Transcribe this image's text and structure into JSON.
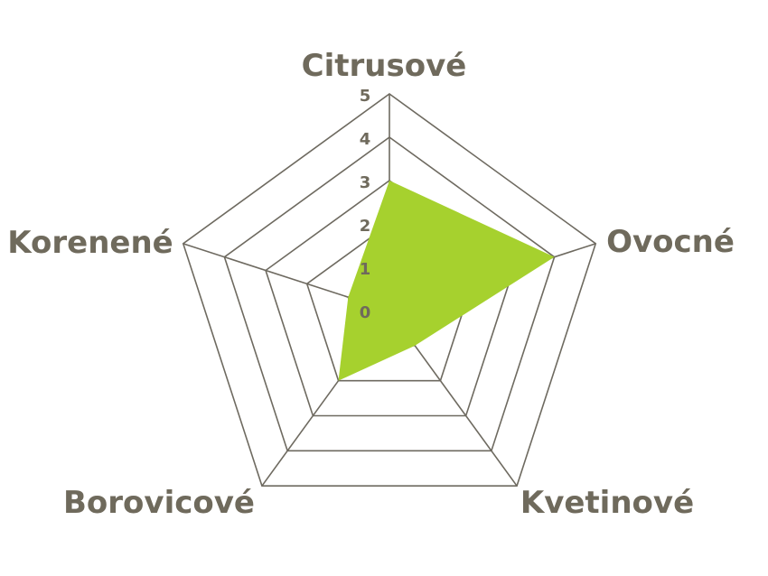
{
  "chart_data": {
    "type": "radar",
    "categories": [
      "Citrusové",
      "Ovocné",
      "Kvetinové",
      "Borovicové",
      "Korenené"
    ],
    "values": [
      3,
      4,
      1,
      2,
      1
    ],
    "rlim": [
      0,
      5
    ],
    "ticks": [
      "0",
      "1",
      "2",
      "3",
      "4",
      "5"
    ],
    "grid": true,
    "colors": {
      "fill": "#a6d12e",
      "grid": "#6e6a60",
      "text": "#6f6a5c"
    }
  }
}
